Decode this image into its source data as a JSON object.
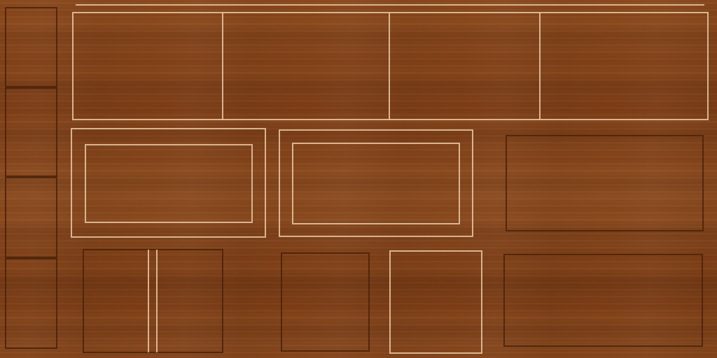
{
  "texture": {
    "base_color": "#8a4a1f",
    "light_line_color": "#e8c9a4",
    "dark_line_color": "#4a2209"
  }
}
